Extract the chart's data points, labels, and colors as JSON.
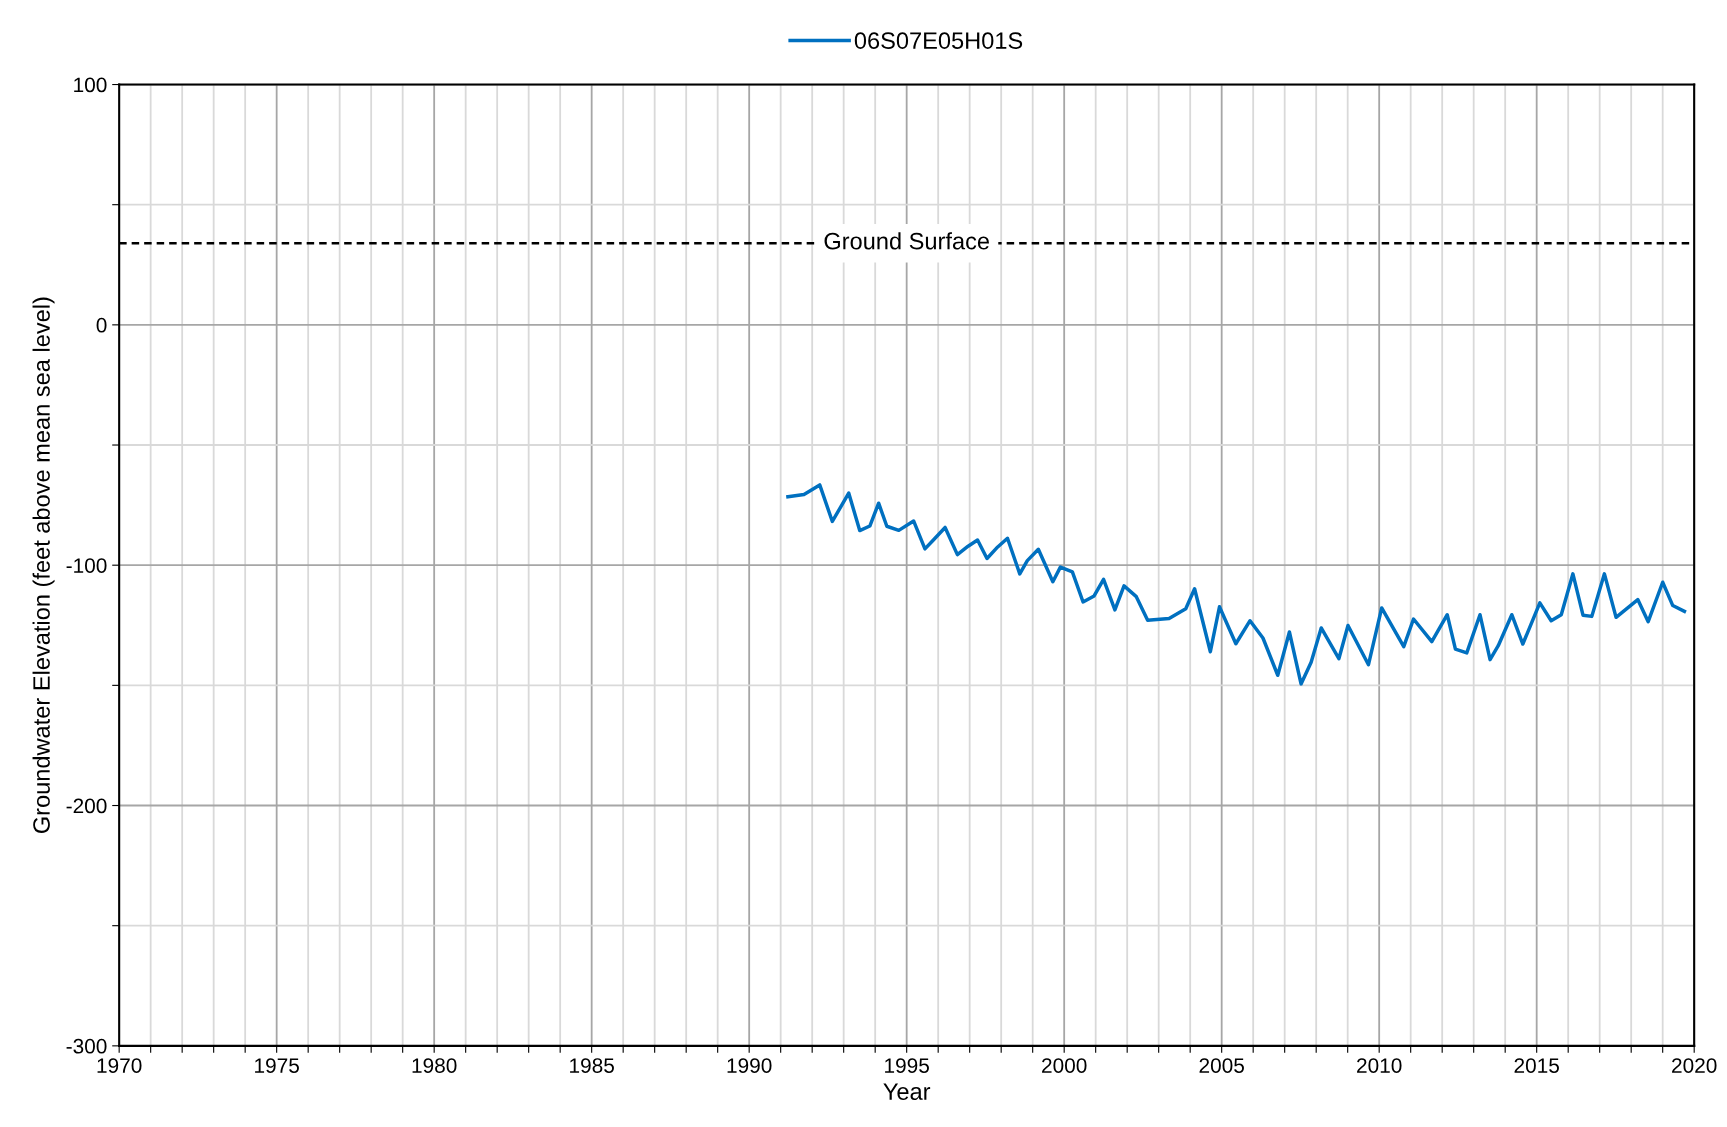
{
  "chart_data": {
    "type": "line",
    "xlabel": "Year",
    "ylabel": "Groundwater Elevation (feet above mean sea level)",
    "x": [
      1991.23,
      1991.74,
      1992.24,
      1992.64,
      1993.16,
      1993.51,
      1993.83,
      1994.11,
      1994.37,
      1994.75,
      1995.22,
      1995.58,
      1995.84,
      1996.22,
      1996.61,
      1996.95,
      1997.25,
      1997.55,
      1997.89,
      1998.2,
      1998.59,
      1998.83,
      1999.18,
      1999.64,
      1999.88,
      2000.26,
      2000.6,
      2000.95,
      2001.25,
      2001.61,
      2001.9,
      2002.29,
      2002.65,
      2003.33,
      2003.86,
      2004.14,
      2004.64,
      2004.93,
      2005.45,
      2005.9,
      2006.31,
      2006.78,
      2007.15,
      2007.52,
      2007.84,
      2008.16,
      2008.72,
      2009.01,
      2009.66,
      2010.08,
      2010.78,
      2011.09,
      2011.67,
      2012.16,
      2012.42,
      2012.78,
      2013.2,
      2013.52,
      2013.78,
      2014.21,
      2014.56,
      2015.1,
      2015.46,
      2015.78,
      2016.15,
      2016.47,
      2016.75,
      2017.15,
      2017.52,
      2018.21,
      2018.54,
      2019.0,
      2019.32,
      2019.69
    ],
    "series": [
      {
        "name": "06S07E05H01S",
        "color": "#0070c0",
        "values": [
          -71.5,
          -70.6,
          -66.6,
          -81.8,
          -70.0,
          -85.6,
          -83.7,
          -74.2,
          -83.8,
          -85.5,
          -81.6,
          -93.2,
          -89.6,
          -84.3,
          -95.6,
          -92.1,
          -89.5,
          -97.2,
          -92.4,
          -88.8,
          -103.6,
          -98.1,
          -93.4,
          -106.9,
          -100.8,
          -102.8,
          -115.3,
          -112.8,
          -105.9,
          -118.6,
          -108.6,
          -113.1,
          -122.9,
          -122.2,
          -118.1,
          -109.8,
          -136.0,
          -117.3,
          -132.7,
          -123.1,
          -130.3,
          -145.8,
          -127.8,
          -149.4,
          -140.4,
          -126.1,
          -138.9,
          -125.1,
          -141.4,
          -117.8,
          -133.9,
          -122.4,
          -131.8,
          -120.6,
          -134.9,
          -136.5,
          -120.6,
          -139.3,
          -133.5,
          -120.6,
          -132.8,
          -115.7,
          -123.1,
          -120.6,
          -103.6,
          -120.8,
          -121.3,
          -103.6,
          -121.7,
          -114.3,
          -123.5,
          -107.1,
          -116.8,
          -119.2
        ]
      }
    ],
    "xlim": [
      1970,
      2020
    ],
    "xticks": [
      1970,
      {
        "value": 1971,
        "label": null
      },
      {
        "value": 1972,
        "label": null
      },
      {
        "value": 1973,
        "label": null
      },
      {
        "value": 1974,
        "label": null
      },
      1975,
      {
        "value": 1976,
        "label": null
      },
      {
        "value": 1977,
        "label": null
      },
      {
        "value": 1978,
        "label": null
      },
      {
        "value": 1979,
        "label": null
      },
      1980,
      {
        "value": 1981,
        "label": null
      },
      {
        "value": 1982,
        "label": null
      },
      {
        "value": 1983,
        "label": null
      },
      {
        "value": 1984,
        "label": null
      },
      1985,
      {
        "value": 1986,
        "label": null
      },
      {
        "value": 1987,
        "label": null
      },
      {
        "value": 1988,
        "label": null
      },
      {
        "value": 1989,
        "label": null
      },
      1990,
      {
        "value": 1991,
        "label": null
      },
      {
        "value": 1992,
        "label": null
      },
      {
        "value": 1993,
        "label": null
      },
      {
        "value": 1994,
        "label": null
      },
      1995,
      {
        "value": 1996,
        "label": null
      },
      {
        "value": 1997,
        "label": null
      },
      {
        "value": 1998,
        "label": null
      },
      {
        "value": 1999,
        "label": null
      },
      2000,
      {
        "value": 2001,
        "label": null
      },
      {
        "value": 2002,
        "label": null
      },
      {
        "value": 2003,
        "label": null
      },
      {
        "value": 2004,
        "label": null
      },
      2005,
      {
        "value": 2006,
        "label": null
      },
      {
        "value": 2007,
        "label": null
      },
      {
        "value": 2008,
        "label": null
      },
      {
        "value": 2009,
        "label": null
      },
      2010,
      {
        "value": 2011,
        "label": null
      },
      {
        "value": 2012,
        "label": null
      },
      {
        "value": 2013,
        "label": null
      },
      {
        "value": 2014,
        "label": null
      },
      2015,
      {
        "value": 2016,
        "label": null
      },
      {
        "value": 2017,
        "label": null
      },
      {
        "value": 2018,
        "label": null
      },
      {
        "value": 2019,
        "label": null
      },
      2020
    ],
    "ylim": [
      -300,
      100
    ],
    "yticks": [
      -300,
      {
        "value": -250,
        "label": null
      },
      -200,
      {
        "value": -150,
        "label": null
      },
      -100,
      {
        "value": -50,
        "label": null
      },
      0,
      {
        "value": 50,
        "label": null
      },
      100
    ],
    "ref_lines": [
      {
        "axis": "y",
        "value": 34,
        "label": "Ground Surface",
        "color": "#000000",
        "line_style": "dashed"
      }
    ],
    "grid": true,
    "legend": "top",
    "marker": "none",
    "line_style": "solid"
  }
}
